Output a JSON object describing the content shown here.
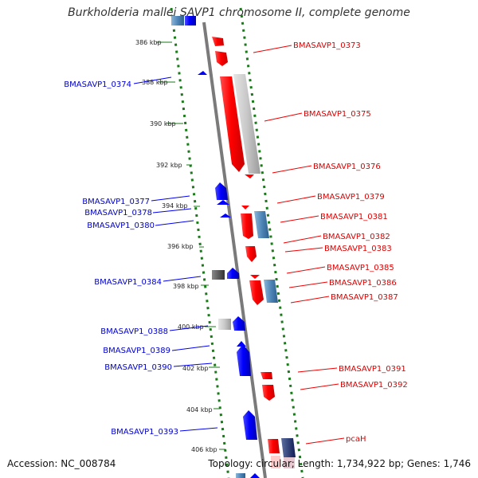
{
  "title": "Burkholderia mallei SAVP1 chromosome II, complete genome",
  "footer": {
    "accession": "Accession: NC_008784",
    "topology": "Topology: circular; Length: 1,734,922 bp; Genes: 1,746"
  },
  "ticks": [
    "386 kbp",
    "388 kbp",
    "390 kbp",
    "392 kbp",
    "394 kbp",
    "396 kbp",
    "398 kbp",
    "400 kbp",
    "402 kbp",
    "404 kbp",
    "406 kbp"
  ],
  "genes_right": [
    "BMASAVP1_0373",
    "BMASAVP1_0375",
    "BMASAVP1_0376",
    "BMASAVP1_0379",
    "BMASAVP1_0381",
    "BMASAVP1_0382",
    "BMASAVP1_0383",
    "BMASAVP1_0385",
    "BMASAVP1_0386",
    "BMASAVP1_0387",
    "BMASAVP1_0391",
    "BMASAVP1_0392",
    "pcaH"
  ],
  "genes_left": [
    "BMASAVP1_0374",
    "BMASAVP1_0377",
    "BMASAVP1_0378",
    "BMASAVP1_0380",
    "BMASAVP1_0384",
    "BMASAVP1_0388",
    "BMASAVP1_0389",
    "BMASAVP1_0390",
    "BMASAVP1_0393"
  ],
  "colors": {
    "forward": "#ff0000",
    "reverse": "#0000ff",
    "label_forward": "#dd0000",
    "label_reverse": "#0000cc",
    "tick": "#1a7a1a"
  }
}
